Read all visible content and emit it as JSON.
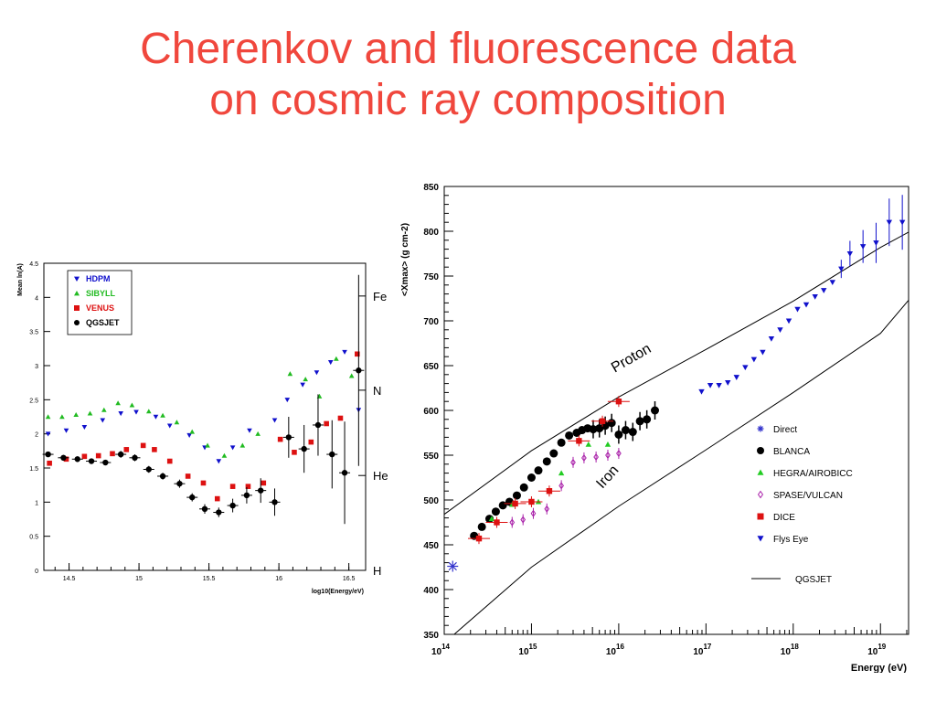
{
  "slide": {
    "title_line1": "Cherenkov and fluorescence data",
    "title_line2": "on cosmic ray composition",
    "title_color": "#f0473d"
  },
  "chart_data": [
    {
      "type": "scatter",
      "title": "",
      "xlabel": "log10(Energy/eV)",
      "ylabel": "Mean ln(A)",
      "xlim": [
        14.32,
        16.62
      ],
      "ylim": [
        0,
        4.5
      ],
      "xticks": [
        14.5,
        15,
        15.5,
        16,
        16.5
      ],
      "yticks": [
        0,
        0.5,
        1,
        1.5,
        2,
        2.5,
        3,
        3.5,
        4,
        4.5
      ],
      "right_axis_labels": [
        {
          "label": "Fe",
          "value": 4.02
        },
        {
          "label": "N",
          "value": 2.64
        },
        {
          "label": "He",
          "value": 1.39
        },
        {
          "label": "H",
          "value": 0
        }
      ],
      "legend_position": "top-left",
      "series": [
        {
          "name": "HDPM",
          "marker": "triangle-down",
          "color": "#1010cc",
          "x": [
            14.35,
            14.48,
            14.61,
            14.74,
            14.87,
            14.98,
            15.12,
            15.22,
            15.36,
            15.47,
            15.57,
            15.67,
            15.79,
            15.97,
            16.06,
            16.17,
            16.27,
            16.37,
            16.47,
            16.57
          ],
          "y": [
            2.0,
            2.05,
            2.1,
            2.2,
            2.3,
            2.32,
            2.25,
            2.12,
            1.98,
            1.8,
            1.6,
            1.8,
            2.05,
            2.2,
            2.5,
            2.72,
            2.9,
            3.05,
            3.2,
            2.35
          ]
        },
        {
          "name": "SIBYLL",
          "marker": "triangle-up",
          "color": "#22bb22",
          "x": [
            14.35,
            14.45,
            14.55,
            14.65,
            14.75,
            14.85,
            14.95,
            15.07,
            15.17,
            15.27,
            15.38,
            15.49,
            15.61,
            15.74,
            15.85,
            16.08,
            16.19,
            16.29,
            16.41,
            16.52
          ],
          "y": [
            2.25,
            2.25,
            2.28,
            2.3,
            2.35,
            2.45,
            2.42,
            2.33,
            2.27,
            2.17,
            2.03,
            1.83,
            1.68,
            1.83,
            2.0,
            2.88,
            2.8,
            2.55,
            3.1,
            2.85
          ]
        },
        {
          "name": "VENUS",
          "marker": "square",
          "color": "#dd1111",
          "x": [
            14.36,
            14.48,
            14.61,
            14.71,
            14.81,
            14.91,
            15.03,
            15.11,
            15.22,
            15.35,
            15.46,
            15.56,
            15.67,
            15.78,
            15.89,
            16.01,
            16.11,
            16.23,
            16.34,
            16.44,
            16.56
          ],
          "y": [
            1.57,
            1.63,
            1.67,
            1.68,
            1.71,
            1.77,
            1.83,
            1.77,
            1.6,
            1.38,
            1.28,
            1.05,
            1.23,
            1.23,
            1.28,
            1.92,
            1.73,
            1.88,
            2.15,
            2.23,
            3.17
          ]
        },
        {
          "name": "QGSJET",
          "marker": "circle",
          "color": "#000000",
          "x": [
            14.35,
            14.46,
            14.56,
            14.66,
            14.76,
            14.87,
            14.97,
            15.07,
            15.17,
            15.29,
            15.38,
            15.47,
            15.57,
            15.67,
            15.77,
            15.87,
            15.97,
            16.07,
            16.18,
            16.28,
            16.38,
            16.47,
            16.57
          ],
          "y": [
            1.7,
            1.65,
            1.63,
            1.6,
            1.58,
            1.7,
            1.65,
            1.48,
            1.38,
            1.27,
            1.07,
            0.9,
            0.85,
            0.95,
            1.1,
            1.17,
            1.0,
            1.95,
            1.78,
            2.13,
            1.7,
            1.43,
            2.93
          ],
          "yerr": [
            0.04,
            0.04,
            0.04,
            0.04,
            0.04,
            0.05,
            0.05,
            0.05,
            0.05,
            0.06,
            0.06,
            0.07,
            0.07,
            0.1,
            0.12,
            0.18,
            0.2,
            0.3,
            0.35,
            0.45,
            0.5,
            0.75,
            1.4
          ]
        }
      ]
    },
    {
      "type": "scatter",
      "title": "",
      "xlabel": "Energy (eV)",
      "ylabel": "<Xmax> (g cm-2)",
      "xscale": "log",
      "xlim": [
        100000000000000.0,
        2.1e+19
      ],
      "ylim": [
        350,
        850
      ],
      "xticks": [
        "10^14",
        "10^15",
        "10^16",
        "10^17",
        "10^18",
        "10^19"
      ],
      "yticks": [
        350,
        400,
        450,
        500,
        550,
        600,
        650,
        700,
        750,
        800,
        850
      ],
      "annotations": [
        "Proton",
        "Iron"
      ],
      "legend_position": "bottom-right",
      "series": [
        {
          "name": "Direct",
          "marker": "asterisk",
          "color": "#3333cc",
          "x": [
            125000000000000.0
          ],
          "y": [
            426
          ]
        },
        {
          "name": "BLANCA",
          "marker": "circle",
          "color": "#000000",
          "x": [
            220000000000000.0,
            270000000000000.0,
            330000000000000.0,
            390000000000000.0,
            470000000000000.0,
            560000000000000.0,
            680000000000000.0,
            820000000000000.0,
            1000000000000000.0,
            1200000000000000.0,
            1500000000000000.0,
            1800000000000000.0,
            2200000000000000.0,
            2700000000000000.0,
            3300000000000000.0,
            3800000000000000.0,
            4400000000000000.0,
            5100000000000000.0,
            6000000000000000.0,
            7000000000000000.0,
            8300000000000000.0,
            1e+16,
            1.2e+16,
            1.45e+16,
            1.75e+16,
            2.1e+16,
            2.6e+16
          ],
          "y": [
            460,
            470,
            479,
            487,
            494,
            498,
            505,
            514,
            525,
            533,
            543,
            552,
            564,
            572,
            575,
            578,
            580,
            579,
            580,
            583,
            586,
            573,
            578,
            576,
            588,
            590,
            600
          ]
        },
        {
          "name": "HEGRA/AIROBICC",
          "marker": "triangle-up",
          "color": "#22cc22",
          "x": [
            350000000000000.0,
            600000000000000.0,
            1200000000000000.0,
            2200000000000000.0,
            4500000000000000.0,
            7500000000000000.0
          ],
          "y": [
            479,
            495,
            498,
            530,
            562,
            562
          ]
        },
        {
          "name": "SPASE/VULCAN",
          "marker": "diamond-open",
          "color": "#aa22aa",
          "x": [
            600000000000000.0,
            800000000000000.0,
            1050000000000000.0,
            1500000000000000.0,
            2200000000000000.0,
            3000000000000000.0,
            4000000000000000.0,
            5500000000000000.0,
            7500000000000000.0,
            1e+16
          ],
          "y": [
            475,
            478,
            485,
            490,
            516,
            542,
            547,
            548,
            550,
            552
          ]
        },
        {
          "name": "DICE",
          "marker": "square",
          "color": "#dd1111",
          "x": [
            250000000000000.0,
            400000000000000.0,
            650000000000000.0,
            1000000000000000.0,
            1600000000000000.0,
            3500000000000000.0,
            6500000000000000.0,
            1e+16
          ],
          "y": [
            457,
            475,
            496,
            498,
            510,
            566,
            588,
            610
          ]
        },
        {
          "name": "Flys Eye",
          "marker": "triangle-down",
          "color": "#1111cc",
          "x": [
            8.9e+16,
            1.12e+17,
            1.41e+17,
            1.78e+17,
            2.24e+17,
            2.82e+17,
            3.55e+17,
            4.47e+17,
            5.62e+17,
            7.08e+17,
            8.91e+17,
            1.12e+18,
            1.41e+18,
            1.78e+18,
            2.24e+18,
            2.82e+18,
            3.55e+18,
            4.47e+18,
            6.31e+18,
            8.91e+18,
            1.26e+19,
            1.78e+19
          ],
          "y": [
            621,
            628,
            628,
            631,
            637,
            648,
            657,
            665,
            680,
            690,
            700,
            713,
            718,
            727,
            734,
            743,
            758,
            775,
            783,
            787,
            810,
            810
          ]
        },
        {
          "name": "QGSJET",
          "marker": "line",
          "color": "#000000",
          "curves": [
            {
              "label": "Proton",
              "x": [
                100000000000000.0,
                1000000000000000.0,
                1e+16,
                1e+17,
                1e+18,
                1e+19,
                2.1e+19
              ],
              "y": [
                484,
                555,
                615,
                668,
                722,
                782,
                799
              ]
            },
            {
              "label": "Iron",
              "x": [
                130000000000000.0,
                1000000000000000.0,
                1e+16,
                1e+17,
                1e+18,
                1e+19,
                2.1e+19
              ],
              "y": [
                350,
                425,
                493,
                556,
                620,
                686,
                723
              ]
            }
          ]
        }
      ]
    }
  ]
}
